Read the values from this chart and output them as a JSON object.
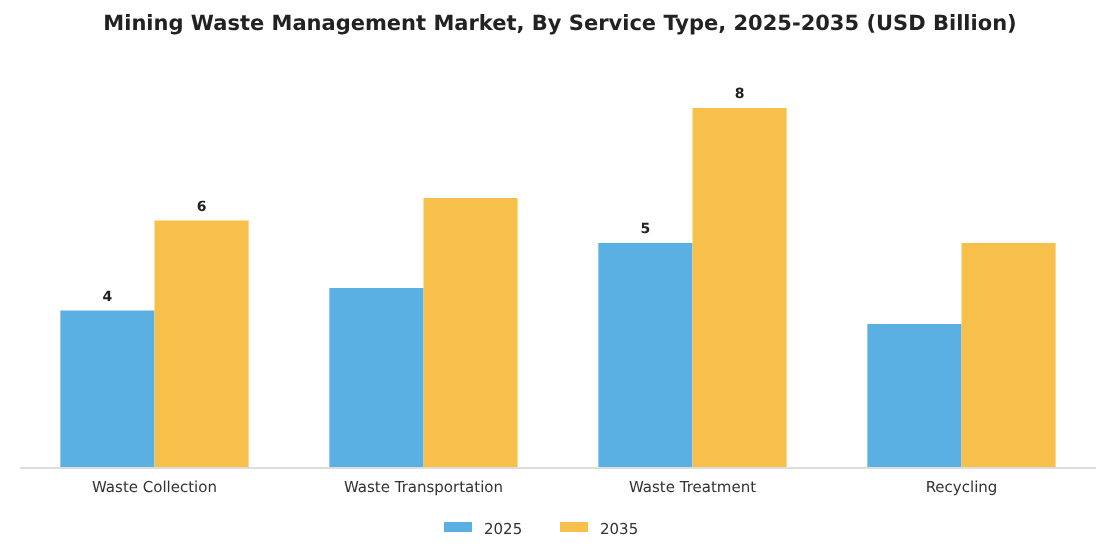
{
  "chart_data": {
    "type": "bar",
    "title": "Mining Waste Management Market, By Service Type, 2025-2035 (USD Billion)",
    "categories": [
      "Waste Collection",
      "Waste Transportation",
      "Waste Treatment",
      "Recycling"
    ],
    "series": [
      {
        "name": "2025",
        "color": "#5aafe3",
        "values": [
          3.5,
          4.0,
          5.0,
          3.2
        ],
        "value_labels": [
          "4",
          null,
          "5",
          null
        ]
      },
      {
        "name": "2035",
        "color": "#f7c04a",
        "values": [
          5.5,
          6.0,
          8.0,
          5.0
        ],
        "value_labels": [
          "6",
          null,
          "8",
          null
        ]
      }
    ],
    "legend": "bottom",
    "grid": false
  }
}
